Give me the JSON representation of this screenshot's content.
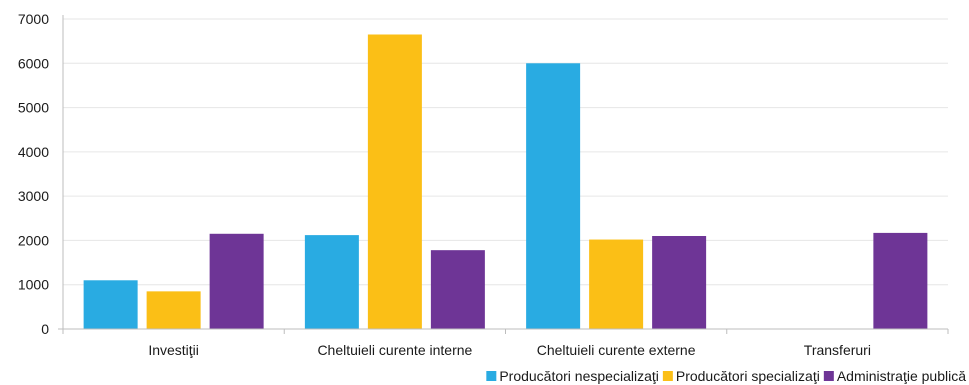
{
  "chart_data": {
    "type": "bar",
    "title": "",
    "xlabel": "",
    "ylabel": "",
    "categories": [
      "Investiţii",
      "Cheltuieli curente interne",
      "Cheltuieli curente externe",
      "Transferuri"
    ],
    "ylim": [
      0,
      7000
    ],
    "yticks": [
      "0",
      "1000",
      "2000",
      "3000",
      "4000",
      "5000",
      "6000",
      "7000"
    ],
    "grid": true,
    "legend_position": "bottom-right",
    "series": [
      {
        "name": "Producători nespecializaţi",
        "color": "#29abe2",
        "values": [
          1100,
          2120,
          6000,
          0
        ]
      },
      {
        "name": "Producători specializaţi",
        "color": "#fbbf16",
        "values": [
          850,
          6650,
          2020,
          0
        ]
      },
      {
        "name": "Administraţie publică",
        "color": "#6e3596",
        "values": [
          2150,
          1780,
          2100,
          2170
        ]
      }
    ]
  }
}
